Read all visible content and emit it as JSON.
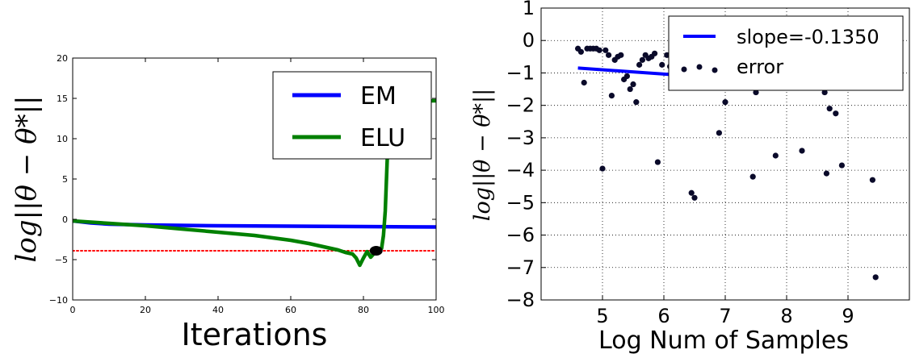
{
  "chart_data": [
    {
      "type": "line",
      "title": "",
      "xlabel": "Iterations",
      "ylabel": "log||θ − θ*||",
      "xlim": [
        0,
        100
      ],
      "ylim": [
        -10,
        20
      ],
      "xticks": [
        "0",
        "20",
        "40",
        "60",
        "80",
        "100"
      ],
      "yticks": [
        "−10",
        "−5",
        "0",
        "5",
        "10",
        "15",
        "20"
      ],
      "grid": false,
      "legend_position": "upper-right",
      "series": [
        {
          "name": "EM",
          "color": "#0000ff",
          "x": [
            0,
            5,
            10,
            20,
            40,
            60,
            80,
            100
          ],
          "y": [
            -0.2,
            -0.45,
            -0.6,
            -0.7,
            -0.8,
            -0.85,
            -0.9,
            -0.95
          ]
        },
        {
          "name": "ELU",
          "color": "#008000",
          "x": [
            0,
            10,
            20,
            30,
            40,
            50,
            60,
            65,
            70,
            73,
            75,
            77,
            78,
            79,
            80,
            81,
            82,
            83,
            84,
            85,
            85.5,
            86,
            86.5,
            87,
            88,
            89,
            90,
            92,
            95,
            100
          ],
          "y": [
            -0.2,
            -0.5,
            -0.8,
            -1.2,
            -1.6,
            -2.0,
            -2.6,
            -3.0,
            -3.5,
            -3.8,
            -4.1,
            -4.3,
            -4.8,
            -5.7,
            -4.8,
            -4.0,
            -4.7,
            -4.2,
            -3.9,
            -3.6,
            -2.0,
            1.0,
            7.0,
            12.0,
            14.7,
            14.7,
            14.7,
            14.7,
            14.7,
            14.7
          ]
        },
        {
          "name": "",
          "style": "dotted",
          "color": "#ff0000",
          "x": [
            0,
            100
          ],
          "y": [
            -3.9,
            -3.9
          ]
        }
      ],
      "markers": [
        {
          "x": 83.5,
          "y": -3.9,
          "color": "#000000"
        }
      ]
    },
    {
      "type": "scatter",
      "title": "",
      "xlabel": "Log Num of Samples",
      "ylabel": "log||θ − θ*||",
      "xlim": [
        4.0,
        10.0
      ],
      "ylim": [
        -8,
        1
      ],
      "xticks": [
        "5",
        "6",
        "7",
        "8",
        "9"
      ],
      "yticks": [
        "−8",
        "−7",
        "−6",
        "−5",
        "−4",
        "−3",
        "−2",
        "−1",
        "0",
        "1"
      ],
      "grid": true,
      "legend_position": "upper-right",
      "legend": [
        "slope=-0.1350",
        "error"
      ],
      "fit_line": {
        "name": "slope=-0.1350",
        "color": "#0000ff",
        "x": [
          4.6,
          9.5
        ],
        "y": [
          -0.85,
          -1.5
        ]
      },
      "points": {
        "name": "error",
        "color": "#0a0a2a",
        "x": [
          4.6,
          4.65,
          4.7,
          4.75,
          4.8,
          4.85,
          4.9,
          4.95,
          5.0,
          5.05,
          5.1,
          5.15,
          5.2,
          5.25,
          5.3,
          5.35,
          5.4,
          5.45,
          5.5,
          5.55,
          5.6,
          5.65,
          5.7,
          5.75,
          5.8,
          5.85,
          5.9,
          5.97,
          6.05,
          6.1,
          6.15,
          6.45,
          6.5,
          6.9,
          7.0,
          7.45,
          7.5,
          7.82,
          8.0,
          8.25,
          8.62,
          8.65,
          8.7,
          8.8,
          8.9,
          9.4,
          9.45
        ],
        "y": [
          -0.25,
          -0.35,
          -1.3,
          -0.25,
          -0.25,
          -0.25,
          -0.25,
          -0.3,
          -3.95,
          -0.3,
          -0.45,
          -1.7,
          -0.6,
          -0.5,
          -0.45,
          -1.2,
          -1.1,
          -1.5,
          -1.35,
          -1.9,
          -0.75,
          -0.6,
          -0.45,
          -0.55,
          -0.5,
          -0.4,
          -3.75,
          -0.75,
          -0.45,
          -0.8,
          -0.85,
          -4.7,
          -4.85,
          -2.85,
          -1.9,
          -4.2,
          -1.6,
          -3.55,
          -1.45,
          -3.4,
          -1.6,
          -4.1,
          -2.1,
          -2.25,
          -3.85,
          -4.3,
          -7.3
        ]
      }
    }
  ]
}
